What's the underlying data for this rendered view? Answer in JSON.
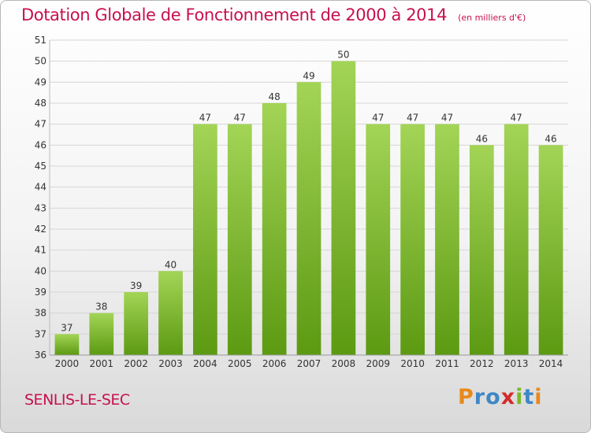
{
  "header": {
    "title": "Dotation Globale de Fonctionnement de 2000 à 2014",
    "unit": "(en milliers d'€)"
  },
  "footer": {
    "commune": "SENLIS-LE-SEC",
    "logo_text": "Proxiti"
  },
  "colors": {
    "title": "#c8104e",
    "bar_top": "#a3d456",
    "bar_bottom": "#5c9a12",
    "grid": "#d6d6d6",
    "axis_text": "#333333",
    "logo_letters": [
      "#e8891b",
      "#3f87c6",
      "#3f87c6",
      "#d42a2a",
      "#7bb928",
      "#3f87c6",
      "#e8891b"
    ]
  },
  "chart_data": {
    "type": "bar",
    "title": "Dotation Globale de Fonctionnement de 2000 à 2014",
    "subtitle": "(en milliers d'€)",
    "xlabel": "",
    "ylabel": "",
    "categories": [
      "2000",
      "2001",
      "2002",
      "2003",
      "2004",
      "2005",
      "2006",
      "2007",
      "2008",
      "2009",
      "2010",
      "2011",
      "2012",
      "2013",
      "2014"
    ],
    "values": [
      37,
      38,
      39,
      40,
      47,
      47,
      48,
      49,
      50,
      47,
      47,
      47,
      46,
      47,
      46
    ],
    "ylim": [
      36,
      51
    ],
    "yticks": [
      36,
      37,
      38,
      39,
      40,
      41,
      42,
      43,
      44,
      45,
      46,
      47,
      48,
      49,
      50,
      51
    ],
    "grid": true,
    "data_labels": true,
    "legend": "none"
  }
}
